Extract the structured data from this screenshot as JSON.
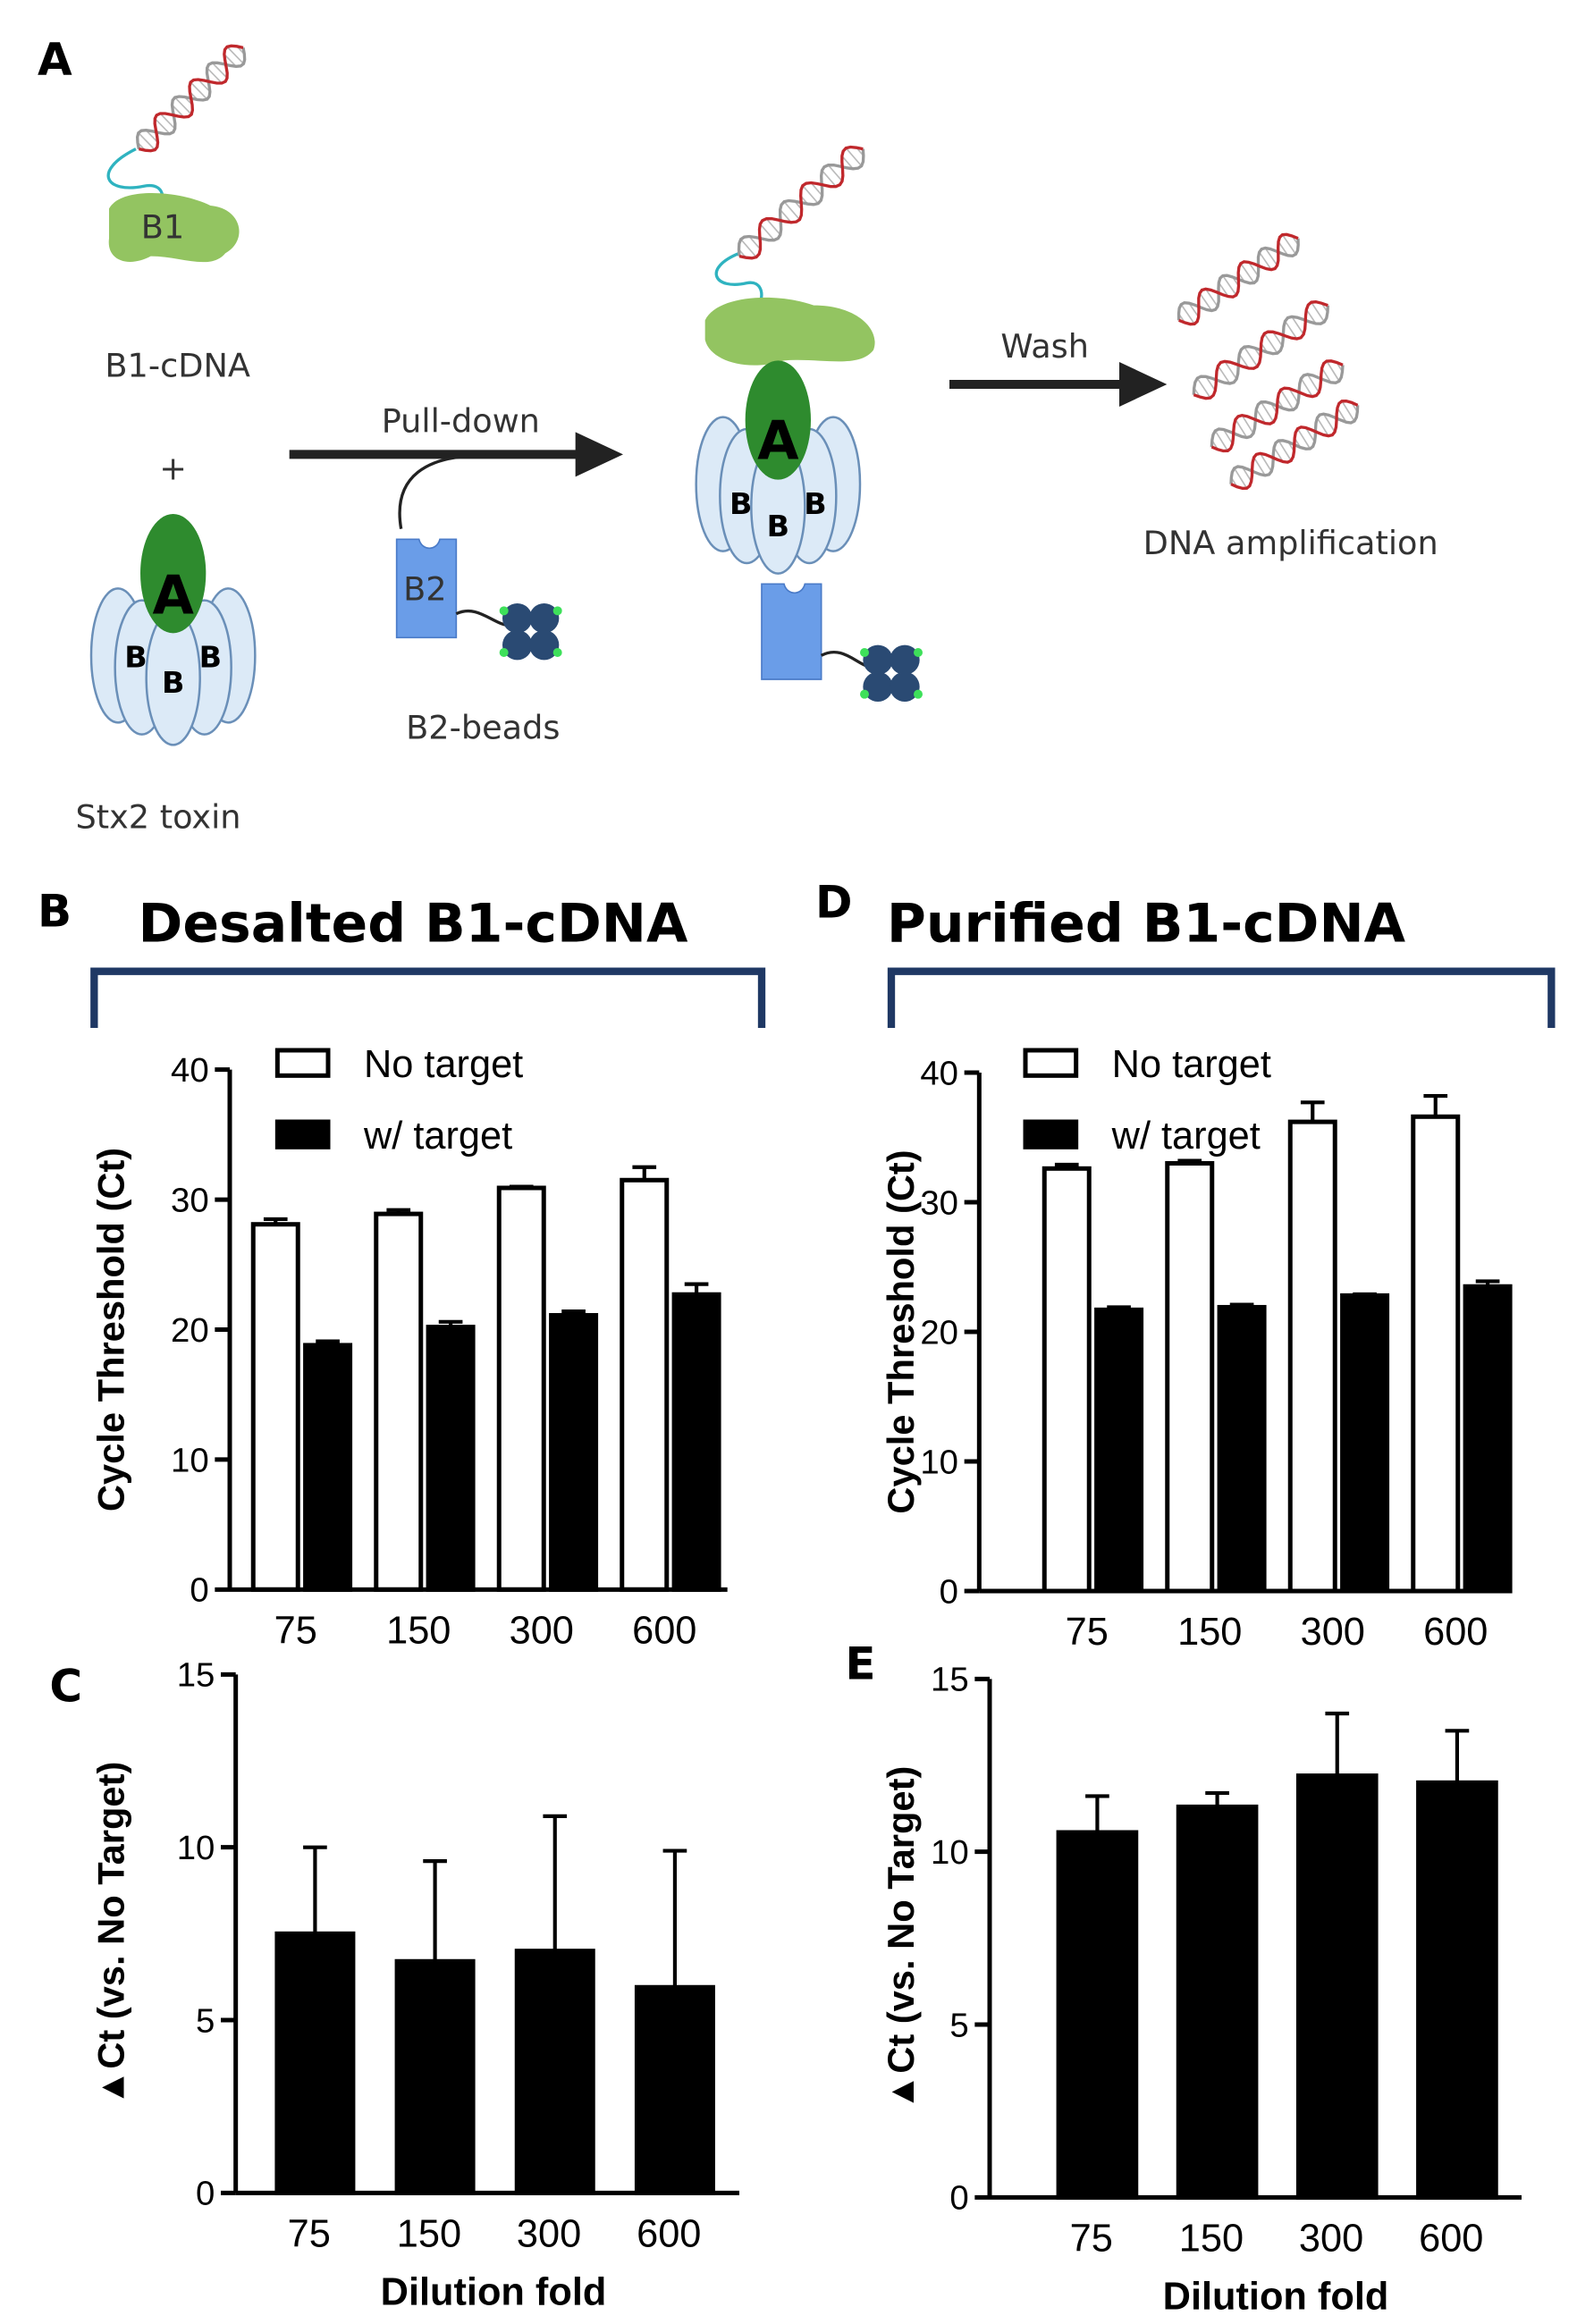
{
  "figure": {
    "panel_a": "A",
    "diagram": {
      "b1_label": "B1",
      "b1_cdna": "B1-cDNA",
      "plus": "+",
      "toxin_a": "A",
      "toxin_b": "B",
      "stx2": "Stx2 toxin",
      "pull_down": "Pull-down",
      "b2_label": "B2",
      "b2_beads": "B2-beads",
      "wash": "Wash",
      "dna_amp": "DNA amplification"
    }
  },
  "chart_data": [
    {
      "type": "bar",
      "panel": "B",
      "title": "Desalted B1-cDNA",
      "ylabel": "Cycle Threshold (Ct)",
      "categories": [
        "75",
        "150",
        "300",
        "600"
      ],
      "series": [
        {
          "name": "No target",
          "color": "#ffffff",
          "values": [
            28.1,
            28.9,
            30.9,
            31.5
          ],
          "errors": [
            0.4,
            0.3,
            0.1,
            1.0
          ]
        },
        {
          "name": "w/ target",
          "color": "#000000",
          "values": [
            18.8,
            20.2,
            21.1,
            22.7
          ],
          "errors": [
            0.3,
            0.4,
            0.3,
            0.8
          ]
        }
      ],
      "ylim": [
        0,
        40
      ],
      "yticks": [
        0,
        10,
        20,
        30,
        40
      ],
      "legend": "upper left"
    },
    {
      "type": "bar",
      "panel": "D",
      "title": "Purified B1-cDNA",
      "ylabel": "Cycle Threshold (Ct)",
      "categories": [
        "75",
        "150",
        "300",
        "600"
      ],
      "series": [
        {
          "name": "No target",
          "color": "#ffffff",
          "values": [
            32.6,
            33.0,
            36.2,
            36.6
          ],
          "errors": [
            0.3,
            0.2,
            1.5,
            1.6
          ]
        },
        {
          "name": "w/ target",
          "color": "#000000",
          "values": [
            21.7,
            21.9,
            22.8,
            23.5
          ],
          "errors": [
            0.2,
            0.2,
            0.1,
            0.4
          ]
        }
      ],
      "ylim": [
        0,
        40
      ],
      "yticks": [
        0,
        10,
        20,
        30,
        40
      ],
      "legend": "upper left"
    },
    {
      "type": "bar",
      "panel": "C",
      "ylabel": "▲Ct (vs. No Target)",
      "xlabel": "Dilution fold",
      "categories": [
        "75",
        "150",
        "300",
        "600"
      ],
      "series": [
        {
          "color": "#000000",
          "values": [
            7.5,
            6.7,
            7.0,
            5.95
          ],
          "errors": [
            2.5,
            2.9,
            3.9,
            3.95
          ]
        }
      ],
      "ylim": [
        0,
        15
      ],
      "yticks": [
        0,
        5,
        10,
        15
      ]
    },
    {
      "type": "bar",
      "panel": "E",
      "ylabel": "▲Ct (vs. No Target)",
      "xlabel": "Dilution fold",
      "categories": [
        "75",
        "150",
        "300",
        "600"
      ],
      "series": [
        {
          "color": "#000000",
          "values": [
            10.56,
            11.3,
            12.2,
            12.0
          ],
          "errors": [
            1.05,
            0.4,
            1.8,
            1.5
          ]
        }
      ],
      "ylim": [
        0,
        15
      ],
      "yticks": [
        0,
        5,
        10,
        15
      ]
    }
  ]
}
